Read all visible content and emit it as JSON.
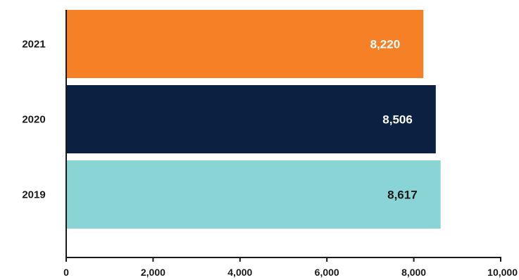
{
  "chart_data": {
    "type": "bar",
    "orientation": "horizontal",
    "title": "",
    "xlabel": "",
    "ylabel": "",
    "categories": [
      "2021",
      "2020",
      "2019"
    ],
    "values": [
      8220,
      8506,
      8617
    ],
    "data_labels": [
      "8,220",
      "8,506",
      "8,617"
    ],
    "bar_colors": [
      "#f58025",
      "#0a2141",
      "#8ad4d6"
    ],
    "label_colors": [
      "#ffffff",
      "#ffffff",
      "#1a1a1a"
    ],
    "xlim": [
      0,
      10000
    ],
    "xticks": [
      0,
      2000,
      4000,
      6000,
      8000,
      10000
    ],
    "xtick_labels": [
      "0",
      "2,000",
      "4,000",
      "6,000",
      "8,000",
      "10,000"
    ],
    "grid": false,
    "legend": "none"
  }
}
